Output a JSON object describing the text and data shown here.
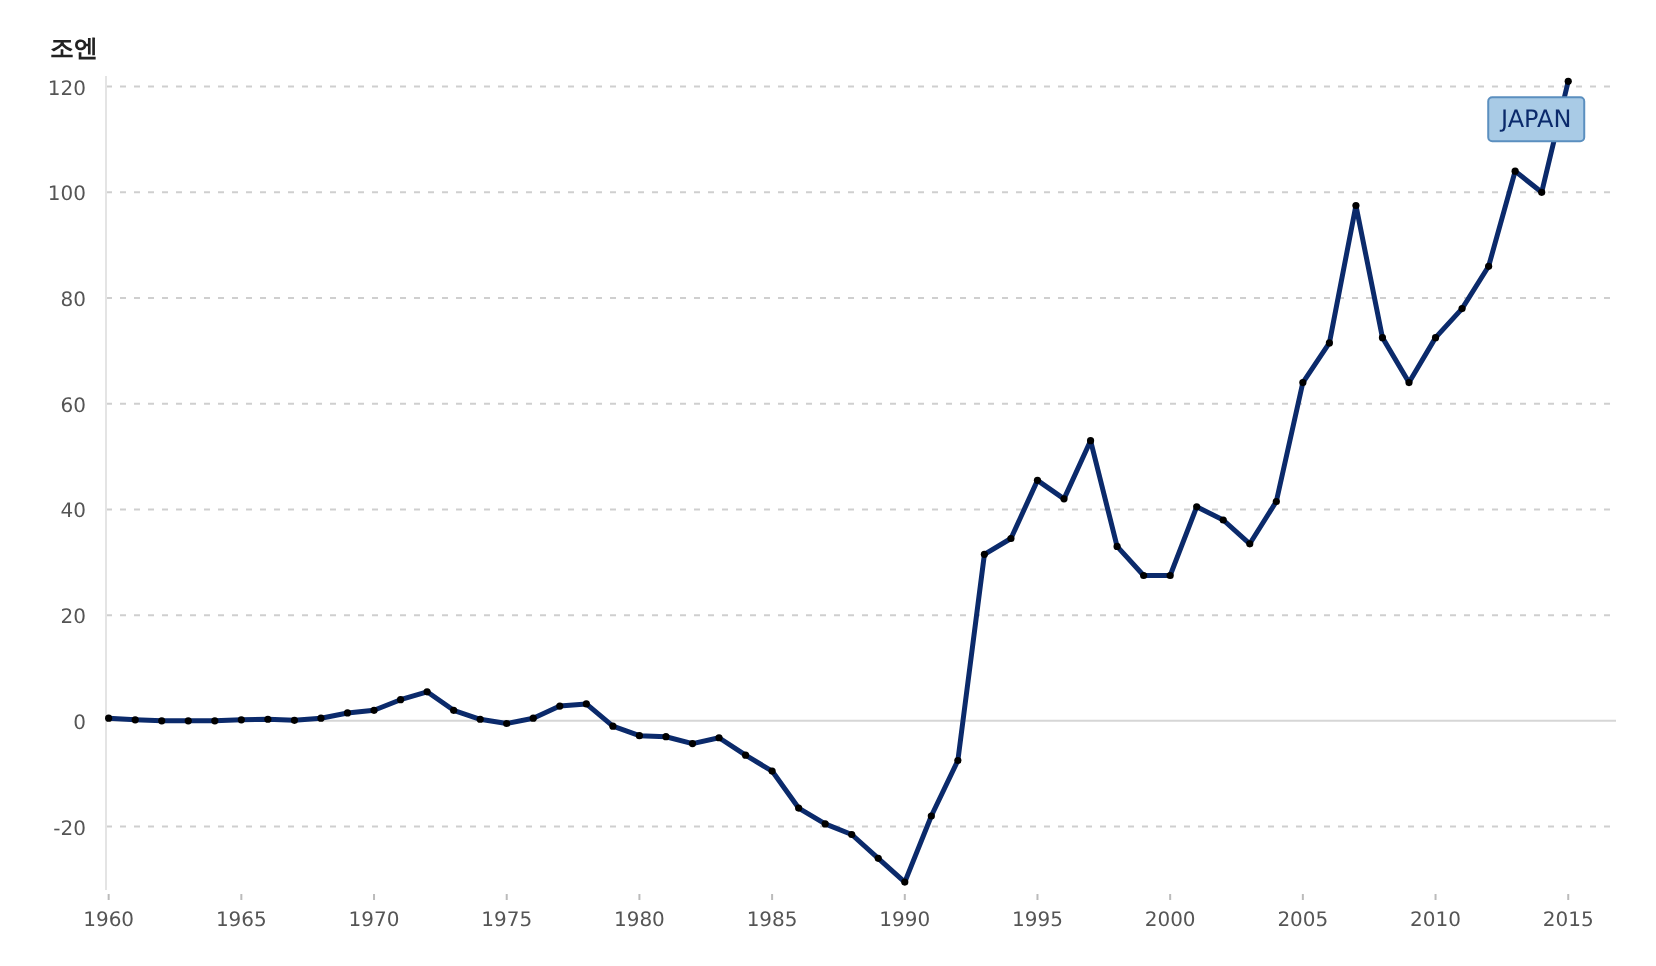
{
  "chart_data": {
    "type": "line",
    "ylabel": "조엔",
    "x": [
      1960,
      1961,
      1962,
      1963,
      1964,
      1965,
      1966,
      1967,
      1968,
      1969,
      1970,
      1971,
      1972,
      1973,
      1974,
      1975,
      1976,
      1977,
      1978,
      1979,
      1980,
      1981,
      1982,
      1983,
      1984,
      1985,
      1986,
      1987,
      1988,
      1989,
      1990,
      1991,
      1992,
      1993,
      1994,
      1995,
      1996,
      1997,
      1998,
      1999,
      2000,
      2001,
      2002,
      2003,
      2004,
      2005,
      2006,
      2007,
      2008,
      2009,
      2010,
      2011,
      2012,
      2013,
      2014,
      2015
    ],
    "series": [
      {
        "name": "JAPAN",
        "color": "#0b2a6b",
        "values": [
          0.5,
          0.2,
          0,
          0,
          0,
          0.2,
          0.3,
          0.1,
          0.5,
          1.5,
          2,
          4,
          5.5,
          2,
          0.3,
          -0.5,
          0.5,
          2.8,
          3.2,
          -1,
          -2.8,
          -3,
          -4.3,
          -3.2,
          -6.5,
          -9.5,
          -16.5,
          -19.5,
          -21.5,
          -26,
          -30.5,
          -18,
          -7.5,
          31.5,
          34.5,
          45.5,
          42,
          53,
          33,
          27.5,
          27.5,
          40.5,
          38,
          33.5,
          41.5,
          64,
          71.5,
          97.5,
          72.5,
          64,
          72.5,
          78,
          86,
          104,
          100,
          121
        ]
      }
    ],
    "xlim": [
      1959.9,
      2016.8
    ],
    "ylim": [
      -32,
      122
    ],
    "xticks": [
      1960,
      1965,
      1970,
      1975,
      1980,
      1985,
      1990,
      1995,
      2000,
      2005,
      2010,
      2015
    ],
    "yticks": [
      -20,
      0,
      20,
      40,
      60,
      80,
      100,
      120
    ],
    "grid": "y",
    "marker": "circle",
    "line_style": "solid"
  }
}
